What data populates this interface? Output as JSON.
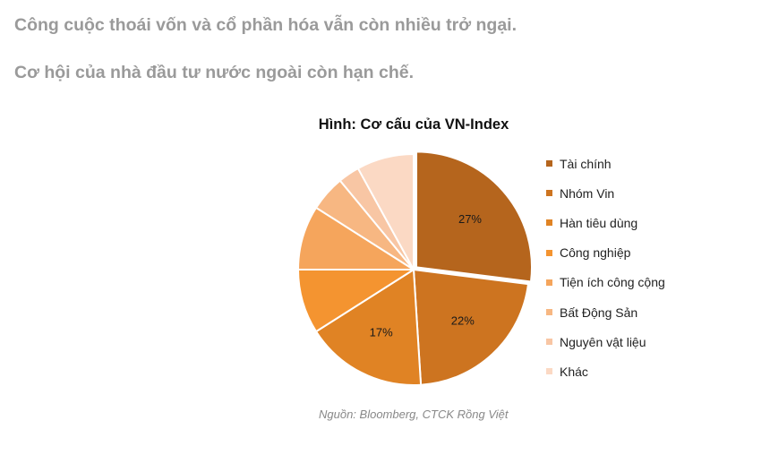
{
  "header": {
    "line1": "Công cuộc thoái vốn và cổ phần hóa vẫn còn nhiều trở ngại.",
    "line2": "Cơ hội của nhà đầu tư nước ngoài còn hạn chế."
  },
  "chart_data": {
    "type": "pie",
    "title": "Hình: Cơ cấu của VN-Index",
    "legend_position": "right",
    "slices": [
      {
        "name": "Tài chính",
        "value": 27,
        "label": "27%",
        "color": "#b5651d"
      },
      {
        "name": "Nhóm Vin",
        "value": 22,
        "label": "22%",
        "color": "#cd7420"
      },
      {
        "name": "Hàn tiêu dùng",
        "value": 17,
        "label": "17%",
        "color": "#e08324"
      },
      {
        "name": "Công nghiệp",
        "value": 9,
        "label": "",
        "color": "#f49430"
      },
      {
        "name": "Tiện ích công cộng",
        "value": 9,
        "label": "",
        "color": "#f5a55c"
      },
      {
        "name": "Bất Động Sản",
        "value": 5,
        "label": "",
        "color": "#f7b782"
      },
      {
        "name": "Nguyên vật liệu",
        "value": 3,
        "label": "",
        "color": "#f8c6a4"
      },
      {
        "name": "Khác",
        "value": 8,
        "label": "",
        "color": "#fbd9c4"
      }
    ]
  },
  "source": "Nguồn: Bloomberg, CTCK Rồng Việt"
}
